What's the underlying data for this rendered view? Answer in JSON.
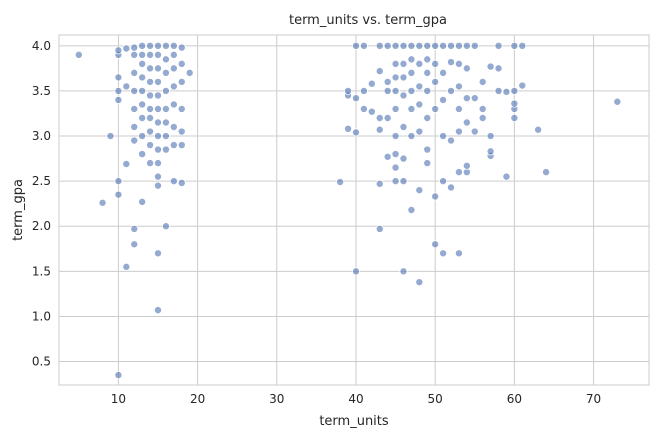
{
  "chart_data": {
    "type": "scatter",
    "title": "term_units vs. term_gpa",
    "xlabel": "term_units",
    "ylabel": "term_gpa",
    "xlim": [
      2.5,
      77
    ],
    "ylim": [
      0.24,
      4.12
    ],
    "xticks": [
      10,
      20,
      30,
      40,
      50,
      60,
      70
    ],
    "yticks": [
      0.5,
      1.0,
      1.5,
      2.0,
      2.5,
      3.0,
      3.5,
      4.0
    ],
    "xtick_labels": [
      "10",
      "20",
      "30",
      "40",
      "50",
      "60",
      "70"
    ],
    "ytick_labels": [
      "0.5",
      "1.0",
      "1.5",
      "2.0",
      "2.5",
      "3.0",
      "3.5",
      "4.0"
    ],
    "grid": true,
    "color": "#4c72b0",
    "points": [
      [
        5,
        3.9
      ],
      [
        8,
        2.26
      ],
      [
        9,
        3.0
      ],
      [
        10,
        0.35
      ],
      [
        10,
        2.35
      ],
      [
        10,
        2.5
      ],
      [
        10,
        3.4
      ],
      [
        10,
        3.5
      ],
      [
        10,
        3.65
      ],
      [
        10,
        3.9
      ],
      [
        10,
        3.95
      ],
      [
        11,
        1.55
      ],
      [
        11,
        2.69
      ],
      [
        11,
        3.55
      ],
      [
        11,
        3.97
      ],
      [
        12,
        1.8
      ],
      [
        12,
        1.97
      ],
      [
        12,
        2.95
      ],
      [
        12,
        3.1
      ],
      [
        12,
        3.3
      ],
      [
        12,
        3.5
      ],
      [
        12,
        3.7
      ],
      [
        12,
        3.9
      ],
      [
        12,
        3.98
      ],
      [
        13,
        2.27
      ],
      [
        13,
        2.8
      ],
      [
        13,
        3.0
      ],
      [
        13,
        3.2
      ],
      [
        13,
        3.35
      ],
      [
        13,
        3.5
      ],
      [
        13,
        3.65
      ],
      [
        13,
        3.8
      ],
      [
        13,
        3.9
      ],
      [
        13,
        4.0
      ],
      [
        14,
        2.7
      ],
      [
        14,
        2.9
      ],
      [
        14,
        3.05
      ],
      [
        14,
        3.2
      ],
      [
        14,
        3.3
      ],
      [
        14,
        3.45
      ],
      [
        14,
        3.6
      ],
      [
        14,
        3.75
      ],
      [
        14,
        3.9
      ],
      [
        14,
        4.0
      ],
      [
        15,
        1.07
      ],
      [
        15,
        1.7
      ],
      [
        15,
        2.45
      ],
      [
        15,
        2.55
      ],
      [
        15,
        2.7
      ],
      [
        15,
        2.85
      ],
      [
        15,
        3.0
      ],
      [
        15,
        3.15
      ],
      [
        15,
        3.3
      ],
      [
        15,
        3.45
      ],
      [
        15,
        3.6
      ],
      [
        15,
        3.75
      ],
      [
        15,
        3.9
      ],
      [
        15,
        4.0
      ],
      [
        16,
        2.0
      ],
      [
        16,
        2.85
      ],
      [
        16,
        3.0
      ],
      [
        16,
        3.15
      ],
      [
        16,
        3.3
      ],
      [
        16,
        3.5
      ],
      [
        16,
        3.7
      ],
      [
        16,
        3.85
      ],
      [
        16,
        4.0
      ],
      [
        17,
        2.5
      ],
      [
        17,
        2.9
      ],
      [
        17,
        3.1
      ],
      [
        17,
        3.35
      ],
      [
        17,
        3.55
      ],
      [
        17,
        3.75
      ],
      [
        17,
        3.9
      ],
      [
        17,
        4.0
      ],
      [
        18,
        2.48
      ],
      [
        18,
        2.9
      ],
      [
        18,
        3.05
      ],
      [
        18,
        3.3
      ],
      [
        18,
        3.6
      ],
      [
        18,
        3.8
      ],
      [
        18,
        3.98
      ],
      [
        19,
        3.7
      ],
      [
        38,
        2.49
      ],
      [
        39,
        3.08
      ],
      [
        39,
        3.45
      ],
      [
        39,
        3.5
      ],
      [
        40,
        1.5
      ],
      [
        40,
        3.04
      ],
      [
        40,
        3.42
      ],
      [
        40,
        4.0
      ],
      [
        41,
        3.3
      ],
      [
        41,
        3.5
      ],
      [
        41,
        4.0
      ],
      [
        42,
        3.27
      ],
      [
        42,
        3.58
      ],
      [
        43,
        1.97
      ],
      [
        43,
        2.47
      ],
      [
        43,
        3.07
      ],
      [
        43,
        3.2
      ],
      [
        43,
        3.72
      ],
      [
        43,
        4.0
      ],
      [
        44,
        2.77
      ],
      [
        44,
        3.2
      ],
      [
        44,
        3.5
      ],
      [
        44,
        3.6
      ],
      [
        44,
        4.0
      ],
      [
        45,
        2.5
      ],
      [
        45,
        2.65
      ],
      [
        45,
        2.8
      ],
      [
        45,
        3.0
      ],
      [
        45,
        3.3
      ],
      [
        45,
        3.5
      ],
      [
        45,
        3.65
      ],
      [
        45,
        3.8
      ],
      [
        45,
        4.0
      ],
      [
        46,
        1.5
      ],
      [
        46,
        2.5
      ],
      [
        46,
        2.75
      ],
      [
        46,
        3.1
      ],
      [
        46,
        3.45
      ],
      [
        46,
        3.65
      ],
      [
        46,
        3.8
      ],
      [
        46,
        4.0
      ],
      [
        47,
        2.18
      ],
      [
        47,
        3.0
      ],
      [
        47,
        3.3
      ],
      [
        47,
        3.5
      ],
      [
        47,
        3.7
      ],
      [
        47,
        3.85
      ],
      [
        47,
        4.0
      ],
      [
        48,
        1.38
      ],
      [
        48,
        2.4
      ],
      [
        48,
        3.05
      ],
      [
        48,
        3.35
      ],
      [
        48,
        3.55
      ],
      [
        48,
        3.8
      ],
      [
        48,
        4.0
      ],
      [
        49,
        2.7
      ],
      [
        49,
        2.85
      ],
      [
        49,
        3.2
      ],
      [
        49,
        3.5
      ],
      [
        49,
        3.7
      ],
      [
        49,
        3.85
      ],
      [
        49,
        4.0
      ],
      [
        50,
        1.8
      ],
      [
        50,
        2.33
      ],
      [
        50,
        3.3
      ],
      [
        50,
        3.6
      ],
      [
        50,
        3.8
      ],
      [
        50,
        4.0
      ],
      [
        51,
        1.7
      ],
      [
        51,
        2.5
      ],
      [
        51,
        3.0
      ],
      [
        51,
        3.4
      ],
      [
        51,
        3.7
      ],
      [
        51,
        4.0
      ],
      [
        52,
        2.43
      ],
      [
        52,
        2.95
      ],
      [
        52,
        3.5
      ],
      [
        52,
        3.82
      ],
      [
        52,
        4.0
      ],
      [
        53,
        1.7
      ],
      [
        53,
        2.6
      ],
      [
        53,
        3.05
      ],
      [
        53,
        3.3
      ],
      [
        53,
        3.55
      ],
      [
        53,
        3.8
      ],
      [
        53,
        4.0
      ],
      [
        54,
        2.6
      ],
      [
        54,
        2.67
      ],
      [
        54,
        3.15
      ],
      [
        54,
        3.42
      ],
      [
        54,
        3.75
      ],
      [
        54,
        4.0
      ],
      [
        55,
        3.05
      ],
      [
        55,
        3.42
      ],
      [
        55,
        4.0
      ],
      [
        56,
        3.2
      ],
      [
        56,
        3.3
      ],
      [
        56,
        3.6
      ],
      [
        57,
        2.78
      ],
      [
        57,
        2.83
      ],
      [
        57,
        3.0
      ],
      [
        57,
        3.77
      ],
      [
        58,
        3.5
      ],
      [
        58,
        3.75
      ],
      [
        58,
        4.0
      ],
      [
        59,
        2.55
      ],
      [
        59,
        3.49
      ],
      [
        60,
        3.2
      ],
      [
        60,
        3.3
      ],
      [
        60,
        3.36
      ],
      [
        60,
        3.5
      ],
      [
        60,
        4.0
      ],
      [
        61,
        3.56
      ],
      [
        61,
        4.0
      ],
      [
        63,
        3.07
      ],
      [
        64,
        2.6
      ],
      [
        73,
        3.38
      ]
    ]
  }
}
